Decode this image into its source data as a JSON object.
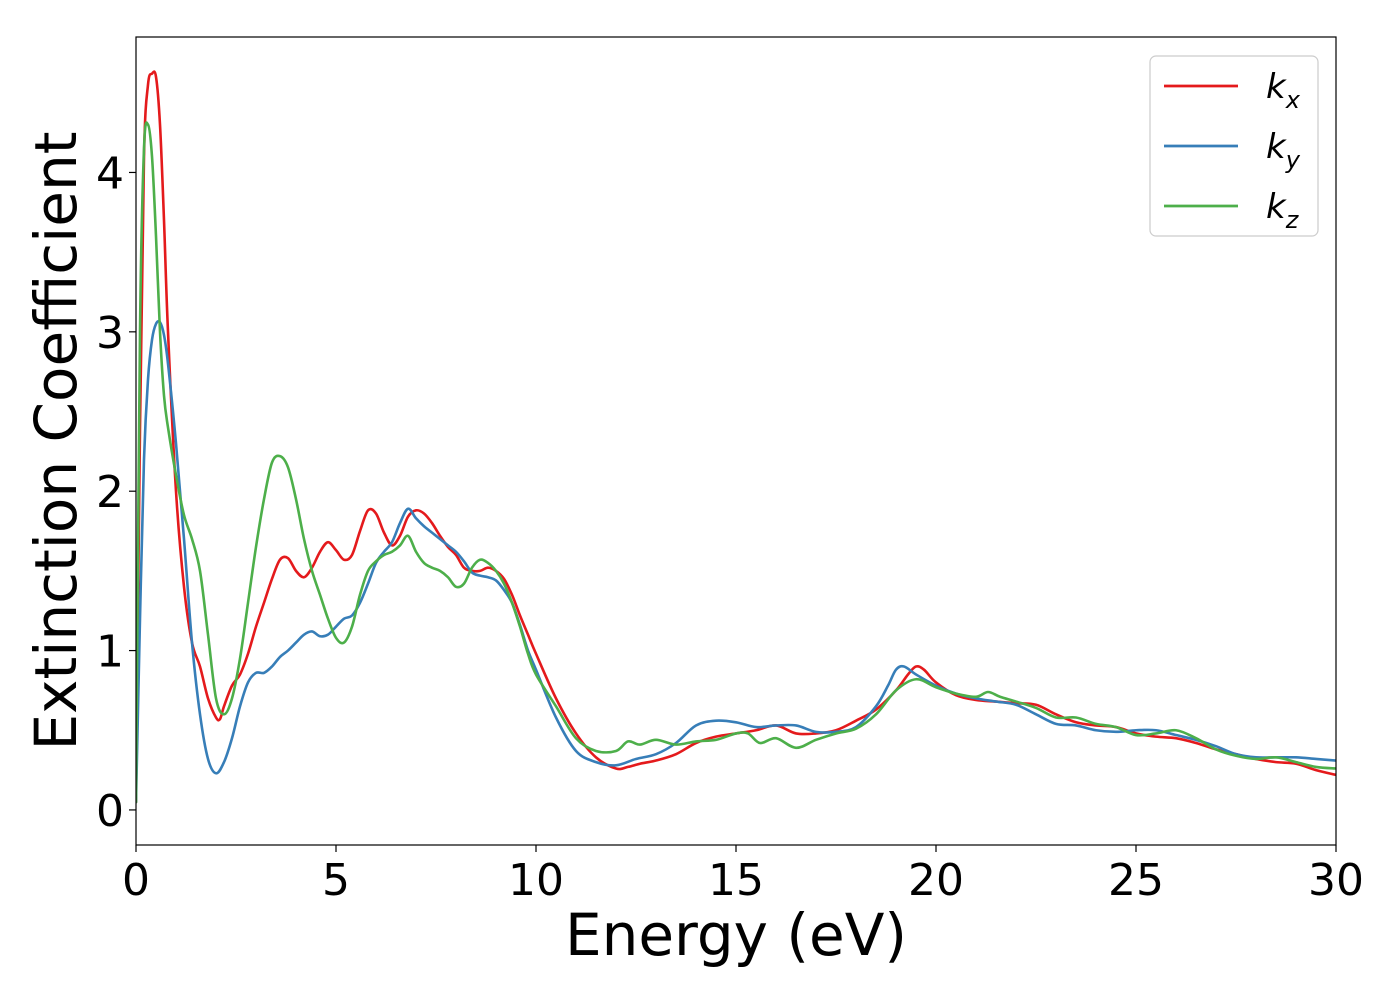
{
  "chart_data": {
    "type": "line",
    "title": "",
    "xlabel": "Energy (eV)",
    "ylabel": "Extinction Coefficient",
    "xlim": [
      0,
      30
    ],
    "ylim": [
      -0.22,
      4.85
    ],
    "xticks": [
      0,
      5,
      10,
      15,
      20,
      25,
      30
    ],
    "yticks": [
      0,
      1,
      2,
      3,
      4
    ],
    "grid": false,
    "legend_position": "top-right",
    "series": [
      {
        "name": "k_x",
        "legend_base": "k",
        "legend_sub": "x",
        "color": "#e41a1c",
        "x": [
          0,
          0.1,
          0.2,
          0.3,
          0.4,
          0.5,
          0.6,
          0.7,
          0.8,
          1.0,
          1.2,
          1.4,
          1.6,
          1.8,
          2.0,
          2.1,
          2.2,
          2.4,
          2.6,
          2.8,
          3.0,
          3.2,
          3.4,
          3.6,
          3.8,
          4.0,
          4.2,
          4.4,
          4.6,
          4.8,
          5.0,
          5.2,
          5.4,
          5.6,
          5.8,
          6.0,
          6.2,
          6.4,
          6.6,
          6.8,
          7.0,
          7.2,
          7.4,
          7.6,
          7.8,
          8.0,
          8.2,
          8.4,
          8.6,
          8.8,
          9.0,
          9.2,
          9.4,
          9.6,
          9.8,
          10.0,
          10.5,
          11.0,
          11.5,
          12.0,
          12.3,
          12.6,
          13.0,
          13.5,
          14.0,
          14.5,
          15.0,
          15.5,
          16.0,
          16.5,
          17.0,
          17.5,
          18.0,
          18.5,
          19.0,
          19.3,
          19.5,
          19.7,
          20.0,
          20.5,
          21.0,
          21.5,
          22.0,
          22.5,
          23.0,
          23.5,
          24.0,
          24.5,
          25.0,
          25.5,
          26.0,
          26.5,
          27.0,
          27.5,
          28.0,
          28.5,
          29.0,
          29.5,
          30.0
        ],
        "y": [
          0.05,
          2.4,
          4.1,
          4.55,
          4.62,
          4.6,
          4.3,
          3.7,
          3.0,
          2.0,
          1.4,
          1.05,
          0.9,
          0.7,
          0.58,
          0.57,
          0.65,
          0.78,
          0.85,
          0.98,
          1.15,
          1.3,
          1.45,
          1.57,
          1.58,
          1.5,
          1.46,
          1.52,
          1.62,
          1.68,
          1.63,
          1.57,
          1.6,
          1.75,
          1.88,
          1.86,
          1.74,
          1.66,
          1.72,
          1.84,
          1.88,
          1.86,
          1.8,
          1.72,
          1.65,
          1.6,
          1.52,
          1.5,
          1.5,
          1.52,
          1.5,
          1.45,
          1.35,
          1.22,
          1.1,
          0.98,
          0.7,
          0.48,
          0.33,
          0.26,
          0.27,
          0.29,
          0.31,
          0.35,
          0.42,
          0.46,
          0.48,
          0.5,
          0.53,
          0.48,
          0.48,
          0.5,
          0.56,
          0.63,
          0.75,
          0.85,
          0.9,
          0.88,
          0.8,
          0.72,
          0.69,
          0.68,
          0.67,
          0.66,
          0.6,
          0.55,
          0.53,
          0.52,
          0.48,
          0.46,
          0.45,
          0.42,
          0.38,
          0.35,
          0.32,
          0.3,
          0.29,
          0.25,
          0.22
        ]
      },
      {
        "name": "k_y",
        "legend_base": "k",
        "legend_sub": "y",
        "color": "#377eb8",
        "x": [
          0,
          0.1,
          0.2,
          0.3,
          0.4,
          0.5,
          0.6,
          0.7,
          0.8,
          1.0,
          1.2,
          1.4,
          1.6,
          1.8,
          2.0,
          2.2,
          2.4,
          2.6,
          2.8,
          3.0,
          3.2,
          3.4,
          3.6,
          3.8,
          4.0,
          4.2,
          4.4,
          4.6,
          4.8,
          5.0,
          5.2,
          5.4,
          5.6,
          5.8,
          6.0,
          6.2,
          6.4,
          6.6,
          6.8,
          7.0,
          7.2,
          7.4,
          7.6,
          7.8,
          8.0,
          8.2,
          8.4,
          8.6,
          8.8,
          9.0,
          9.2,
          9.4,
          9.6,
          9.8,
          10.0,
          10.5,
          11.0,
          11.5,
          12.0,
          12.5,
          13.0,
          13.5,
          14.0,
          14.5,
          15.0,
          15.5,
          16.0,
          16.5,
          17.0,
          17.5,
          18.0,
          18.5,
          18.8,
          19.0,
          19.2,
          19.5,
          20.0,
          20.5,
          21.0,
          21.5,
          22.0,
          22.5,
          23.0,
          23.5,
          24.0,
          24.5,
          25.0,
          25.5,
          26.0,
          26.5,
          27.0,
          27.5,
          28.0,
          28.5,
          29.0,
          29.5,
          30.0
        ],
        "y": [
          0.05,
          1.2,
          2.2,
          2.7,
          2.95,
          3.05,
          3.06,
          2.98,
          2.8,
          2.3,
          1.7,
          1.05,
          0.6,
          0.32,
          0.23,
          0.3,
          0.45,
          0.65,
          0.8,
          0.86,
          0.86,
          0.9,
          0.96,
          1.0,
          1.05,
          1.1,
          1.12,
          1.09,
          1.1,
          1.15,
          1.2,
          1.22,
          1.3,
          1.42,
          1.55,
          1.62,
          1.68,
          1.8,
          1.89,
          1.83,
          1.78,
          1.74,
          1.7,
          1.66,
          1.62,
          1.56,
          1.49,
          1.47,
          1.46,
          1.44,
          1.38,
          1.3,
          1.16,
          1.0,
          0.88,
          0.58,
          0.37,
          0.3,
          0.28,
          0.32,
          0.35,
          0.42,
          0.53,
          0.56,
          0.55,
          0.52,
          0.53,
          0.53,
          0.49,
          0.49,
          0.52,
          0.65,
          0.78,
          0.88,
          0.9,
          0.85,
          0.78,
          0.73,
          0.7,
          0.68,
          0.66,
          0.6,
          0.54,
          0.53,
          0.5,
          0.49,
          0.5,
          0.5,
          0.47,
          0.44,
          0.4,
          0.35,
          0.33,
          0.33,
          0.33,
          0.32,
          0.31
        ]
      },
      {
        "name": "k_z",
        "legend_base": "k",
        "legend_sub": "z",
        "color": "#4daf4a",
        "x": [
          0,
          0.1,
          0.2,
          0.3,
          0.4,
          0.5,
          0.6,
          0.7,
          0.8,
          1.0,
          1.2,
          1.4,
          1.6,
          1.8,
          2.0,
          2.2,
          2.4,
          2.6,
          2.8,
          3.0,
          3.2,
          3.4,
          3.6,
          3.8,
          4.0,
          4.2,
          4.4,
          4.6,
          4.8,
          5.0,
          5.2,
          5.4,
          5.6,
          5.8,
          6.0,
          6.2,
          6.4,
          6.6,
          6.8,
          7.0,
          7.2,
          7.4,
          7.6,
          7.8,
          8.0,
          8.2,
          8.4,
          8.6,
          8.8,
          9.0,
          9.2,
          9.4,
          9.6,
          9.8,
          10.0,
          10.5,
          11.0,
          11.5,
          12.0,
          12.3,
          12.6,
          13.0,
          13.5,
          14.0,
          14.5,
          15.0,
          15.3,
          15.6,
          16.0,
          16.5,
          17.0,
          17.5,
          18.0,
          18.5,
          19.0,
          19.5,
          20.0,
          20.5,
          21.0,
          21.3,
          21.6,
          22.0,
          22.5,
          23.0,
          23.5,
          24.0,
          24.5,
          25.0,
          25.5,
          26.0,
          26.5,
          27.0,
          27.5,
          28.0,
          28.5,
          29.0,
          29.5,
          30.0
        ],
        "y": [
          0.05,
          3.0,
          4.15,
          4.3,
          4.1,
          3.6,
          3.0,
          2.6,
          2.4,
          2.1,
          1.85,
          1.7,
          1.5,
          1.1,
          0.7,
          0.6,
          0.7,
          0.95,
          1.3,
          1.65,
          1.95,
          2.18,
          2.22,
          2.15,
          1.95,
          1.7,
          1.5,
          1.35,
          1.2,
          1.08,
          1.05,
          1.15,
          1.35,
          1.5,
          1.56,
          1.6,
          1.62,
          1.66,
          1.72,
          1.62,
          1.55,
          1.52,
          1.5,
          1.46,
          1.4,
          1.42,
          1.52,
          1.57,
          1.55,
          1.5,
          1.42,
          1.3,
          1.15,
          0.98,
          0.85,
          0.65,
          0.45,
          0.37,
          0.37,
          0.43,
          0.41,
          0.44,
          0.41,
          0.43,
          0.44,
          0.48,
          0.48,
          0.42,
          0.45,
          0.39,
          0.44,
          0.48,
          0.51,
          0.6,
          0.75,
          0.82,
          0.77,
          0.73,
          0.71,
          0.74,
          0.71,
          0.68,
          0.64,
          0.58,
          0.58,
          0.54,
          0.52,
          0.47,
          0.48,
          0.5,
          0.45,
          0.38,
          0.34,
          0.32,
          0.33,
          0.3,
          0.27,
          0.26
        ]
      }
    ]
  }
}
